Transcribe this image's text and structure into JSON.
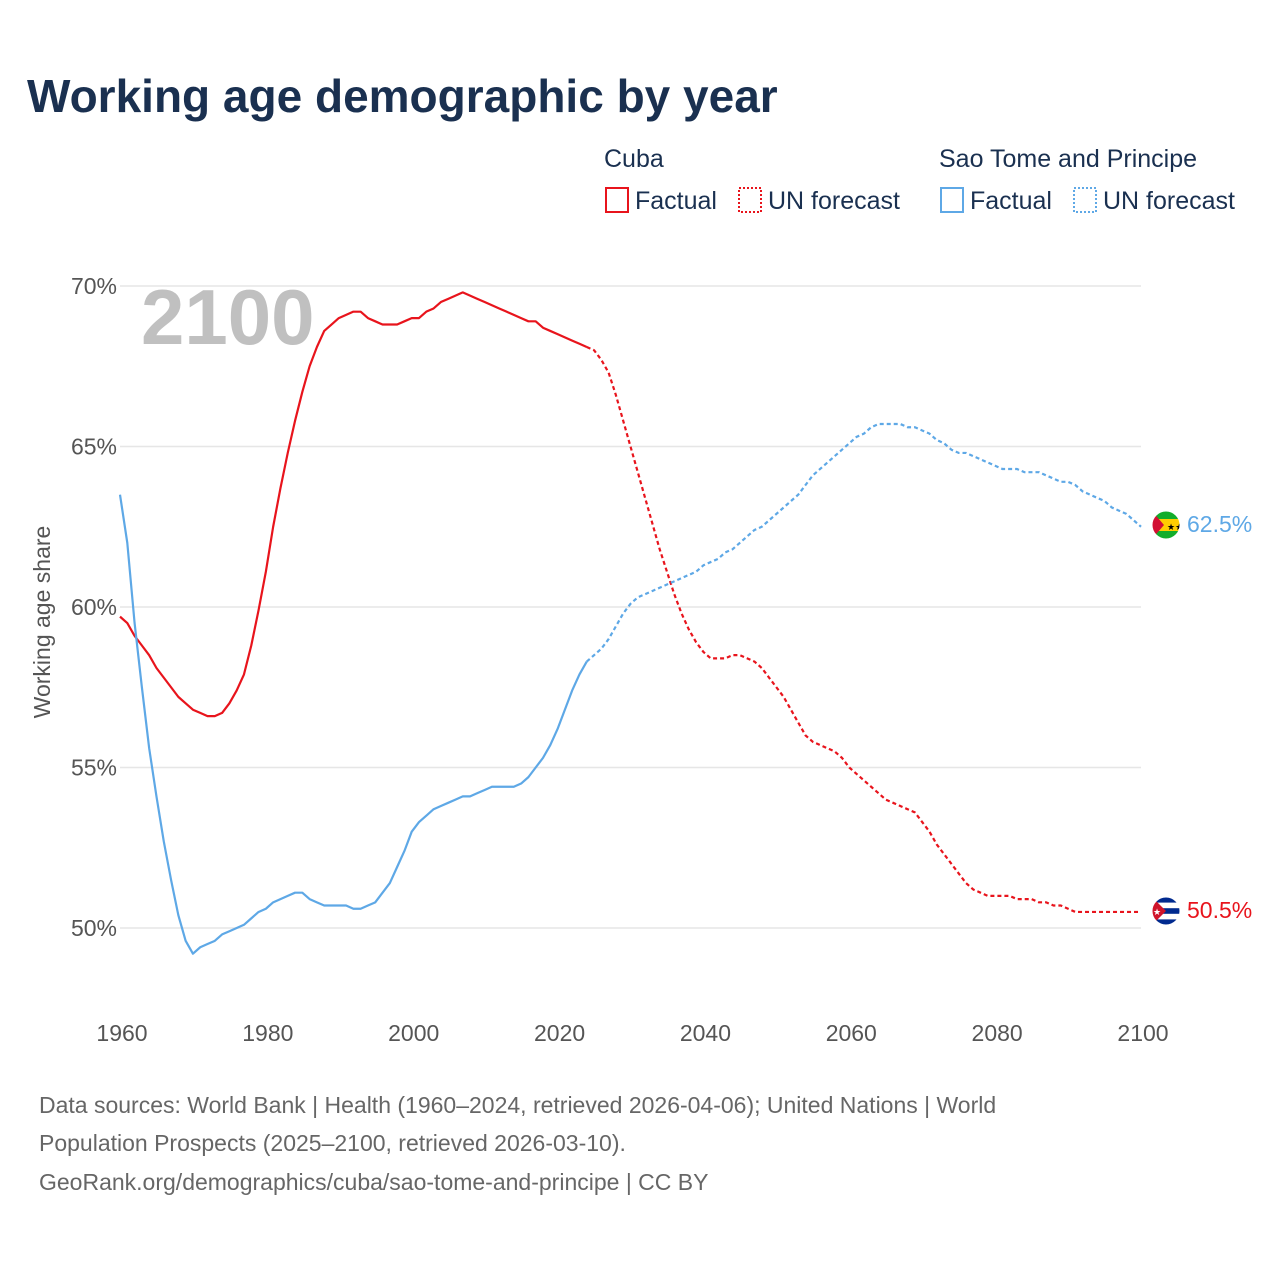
{
  "chart_data": {
    "type": "line",
    "title": "Working age demographic by year",
    "ylabel": "Working age share",
    "xlabel": "",
    "year_label": "2100",
    "xlim": [
      1960,
      2100
    ],
    "ylim": [
      47.5,
      71
    ],
    "x_ticks": [
      1960,
      1980,
      2000,
      2020,
      2040,
      2060,
      2080,
      2100
    ],
    "x_tick_labels": [
      "1960",
      "1980",
      "2000",
      "2020",
      "2040",
      "2060",
      "2080",
      "2100"
    ],
    "y_ticks": [
      50,
      55,
      60,
      65,
      70
    ],
    "y_tick_labels": [
      "50%",
      "55%",
      "60%",
      "65%",
      "70%"
    ],
    "legend": {
      "groups": [
        {
          "name": "Cuba",
          "color": "#e8141c",
          "factual_label": "Factual",
          "forecast_label": "UN forecast"
        },
        {
          "name": "Sao Tome and Principe",
          "color": "#5ea8e6",
          "factual_label": "Factual",
          "forecast_label": "UN forecast"
        }
      ]
    },
    "series": [
      {
        "name": "Cuba",
        "color": "#e8141c",
        "end_label": "50.5%",
        "flag": "cuba-flag",
        "factual": {
          "x": [
            1960,
            1961,
            1962,
            1963,
            1964,
            1965,
            1966,
            1967,
            1968,
            1969,
            1970,
            1971,
            1972,
            1973,
            1974,
            1975,
            1976,
            1977,
            1978,
            1979,
            1980,
            1981,
            1982,
            1983,
            1984,
            1985,
            1986,
            1987,
            1988,
            1989,
            1990,
            1991,
            1992,
            1993,
            1994,
            1995,
            1996,
            1997,
            1998,
            1999,
            2000,
            2001,
            2002,
            2003,
            2004,
            2005,
            2006,
            2007,
            2008,
            2009,
            2010,
            2011,
            2012,
            2013,
            2014,
            2015,
            2016,
            2017,
            2018,
            2019,
            2020,
            2021,
            2022,
            2023,
            2024
          ],
          "y": [
            59.7,
            59.5,
            59.1,
            58.8,
            58.5,
            58.1,
            57.8,
            57.5,
            57.2,
            57.0,
            56.8,
            56.7,
            56.6,
            56.6,
            56.7,
            57.0,
            57.4,
            57.9,
            58.8,
            59.9,
            61.1,
            62.5,
            63.7,
            64.8,
            65.8,
            66.7,
            67.5,
            68.1,
            68.6,
            68.8,
            69.0,
            69.1,
            69.2,
            69.2,
            69.0,
            68.9,
            68.8,
            68.8,
            68.8,
            68.9,
            69.0,
            69.0,
            69.2,
            69.3,
            69.5,
            69.6,
            69.7,
            69.8,
            69.7,
            69.6,
            69.5,
            69.4,
            69.3,
            69.2,
            69.1,
            69.0,
            68.9,
            68.9,
            68.7,
            68.6,
            68.5,
            68.4,
            68.3,
            68.2,
            68.1
          ]
        },
        "forecast": {
          "x": [
            2024,
            2025,
            2026,
            2027,
            2028,
            2029,
            2030,
            2031,
            2032,
            2033,
            2034,
            2035,
            2036,
            2037,
            2038,
            2039,
            2040,
            2041,
            2042,
            2043,
            2044,
            2045,
            2046,
            2047,
            2048,
            2049,
            2050,
            2051,
            2052,
            2053,
            2054,
            2055,
            2056,
            2057,
            2058,
            2059,
            2060,
            2061,
            2062,
            2063,
            2064,
            2065,
            2066,
            2067,
            2068,
            2069,
            2070,
            2071,
            2072,
            2073,
            2074,
            2075,
            2076,
            2077,
            2078,
            2079,
            2080,
            2081,
            2082,
            2083,
            2084,
            2085,
            2086,
            2087,
            2088,
            2089,
            2090,
            2091,
            2092,
            2093,
            2094,
            2095,
            2096,
            2097,
            2098,
            2099,
            2100
          ],
          "y": [
            68.1,
            68.0,
            67.7,
            67.3,
            66.6,
            65.8,
            65.0,
            64.2,
            63.4,
            62.6,
            61.8,
            61.1,
            60.4,
            59.8,
            59.3,
            58.9,
            58.6,
            58.4,
            58.4,
            58.4,
            58.5,
            58.5,
            58.4,
            58.3,
            58.1,
            57.8,
            57.5,
            57.2,
            56.8,
            56.4,
            56.0,
            55.8,
            55.7,
            55.6,
            55.5,
            55.3,
            55.0,
            54.8,
            54.6,
            54.4,
            54.2,
            54.0,
            53.9,
            53.8,
            53.7,
            53.6,
            53.3,
            53.0,
            52.6,
            52.3,
            52.0,
            51.7,
            51.4,
            51.2,
            51.1,
            51.0,
            51.0,
            51.0,
            51.0,
            50.9,
            50.9,
            50.9,
            50.8,
            50.8,
            50.7,
            50.7,
            50.6,
            50.5,
            50.5,
            50.5,
            50.5,
            50.5,
            50.5,
            50.5,
            50.5,
            50.5,
            50.5
          ]
        }
      },
      {
        "name": "Sao Tome and Principe",
        "color": "#5ea8e6",
        "end_label": "62.5%",
        "flag": "sao-tome-flag",
        "factual": {
          "x": [
            1960,
            1961,
            1962,
            1963,
            1964,
            1965,
            1966,
            1967,
            1968,
            1969,
            1970,
            1971,
            1972,
            1973,
            1974,
            1975,
            1976,
            1977,
            1978,
            1979,
            1980,
            1981,
            1982,
            1983,
            1984,
            1985,
            1986,
            1987,
            1988,
            1989,
            1990,
            1991,
            1992,
            1993,
            1994,
            1995,
            1996,
            1997,
            1998,
            1999,
            2000,
            2001,
            2002,
            2003,
            2004,
            2005,
            2006,
            2007,
            2008,
            2009,
            2010,
            2011,
            2012,
            2013,
            2014,
            2015,
            2016,
            2017,
            2018,
            2019,
            2020,
            2021,
            2022,
            2023,
            2024
          ],
          "y": [
            63.5,
            62.0,
            59.5,
            57.5,
            55.6,
            54.1,
            52.7,
            51.5,
            50.4,
            49.6,
            49.2,
            49.4,
            49.5,
            49.6,
            49.8,
            49.9,
            50.0,
            50.1,
            50.3,
            50.5,
            50.6,
            50.8,
            50.9,
            51.0,
            51.1,
            51.1,
            50.9,
            50.8,
            50.7,
            50.7,
            50.7,
            50.7,
            50.6,
            50.6,
            50.7,
            50.8,
            51.1,
            51.4,
            51.9,
            52.4,
            53.0,
            53.3,
            53.5,
            53.7,
            53.8,
            53.9,
            54.0,
            54.1,
            54.1,
            54.2,
            54.3,
            54.4,
            54.4,
            54.4,
            54.4,
            54.5,
            54.7,
            55.0,
            55.3,
            55.7,
            56.2,
            56.8,
            57.4,
            57.9,
            58.3
          ]
        },
        "forecast": {
          "x": [
            2024,
            2025,
            2026,
            2027,
            2028,
            2029,
            2030,
            2031,
            2032,
            2033,
            2034,
            2035,
            2036,
            2037,
            2038,
            2039,
            2040,
            2041,
            2042,
            2043,
            2044,
            2045,
            2046,
            2047,
            2048,
            2049,
            2050,
            2051,
            2052,
            2053,
            2054,
            2055,
            2056,
            2057,
            2058,
            2059,
            2060,
            2061,
            2062,
            2063,
            2064,
            2065,
            2066,
            2067,
            2068,
            2069,
            2070,
            2071,
            2072,
            2073,
            2074,
            2075,
            2076,
            2077,
            2078,
            2079,
            2080,
            2081,
            2082,
            2083,
            2084,
            2085,
            2086,
            2087,
            2088,
            2089,
            2090,
            2091,
            2092,
            2093,
            2094,
            2095,
            2096,
            2097,
            2098,
            2099,
            2100
          ],
          "y": [
            58.3,
            58.5,
            58.7,
            59.0,
            59.4,
            59.8,
            60.1,
            60.3,
            60.4,
            60.5,
            60.6,
            60.7,
            60.8,
            60.9,
            61.0,
            61.1,
            61.3,
            61.4,
            61.5,
            61.7,
            61.8,
            62.0,
            62.2,
            62.4,
            62.5,
            62.7,
            62.9,
            63.1,
            63.3,
            63.5,
            63.8,
            64.1,
            64.3,
            64.5,
            64.7,
            64.9,
            65.1,
            65.3,
            65.4,
            65.6,
            65.7,
            65.7,
            65.7,
            65.7,
            65.6,
            65.6,
            65.5,
            65.4,
            65.2,
            65.1,
            64.9,
            64.8,
            64.8,
            64.7,
            64.6,
            64.5,
            64.4,
            64.3,
            64.3,
            64.3,
            64.2,
            64.2,
            64.2,
            64.1,
            64.0,
            63.9,
            63.9,
            63.8,
            63.6,
            63.5,
            63.4,
            63.3,
            63.1,
            63.0,
            62.9,
            62.7,
            62.5
          ]
        }
      }
    ]
  },
  "footer": {
    "line1": "Data sources: World Bank | Health (1960–2024, retrieved 2026-04-06); United Nations | World",
    "line2": "Population Prospects (2025–2100, retrieved 2026-03-10).",
    "line3": "GeoRank.org/demographics/cuba/sao-tome-and-principe | CC BY"
  }
}
